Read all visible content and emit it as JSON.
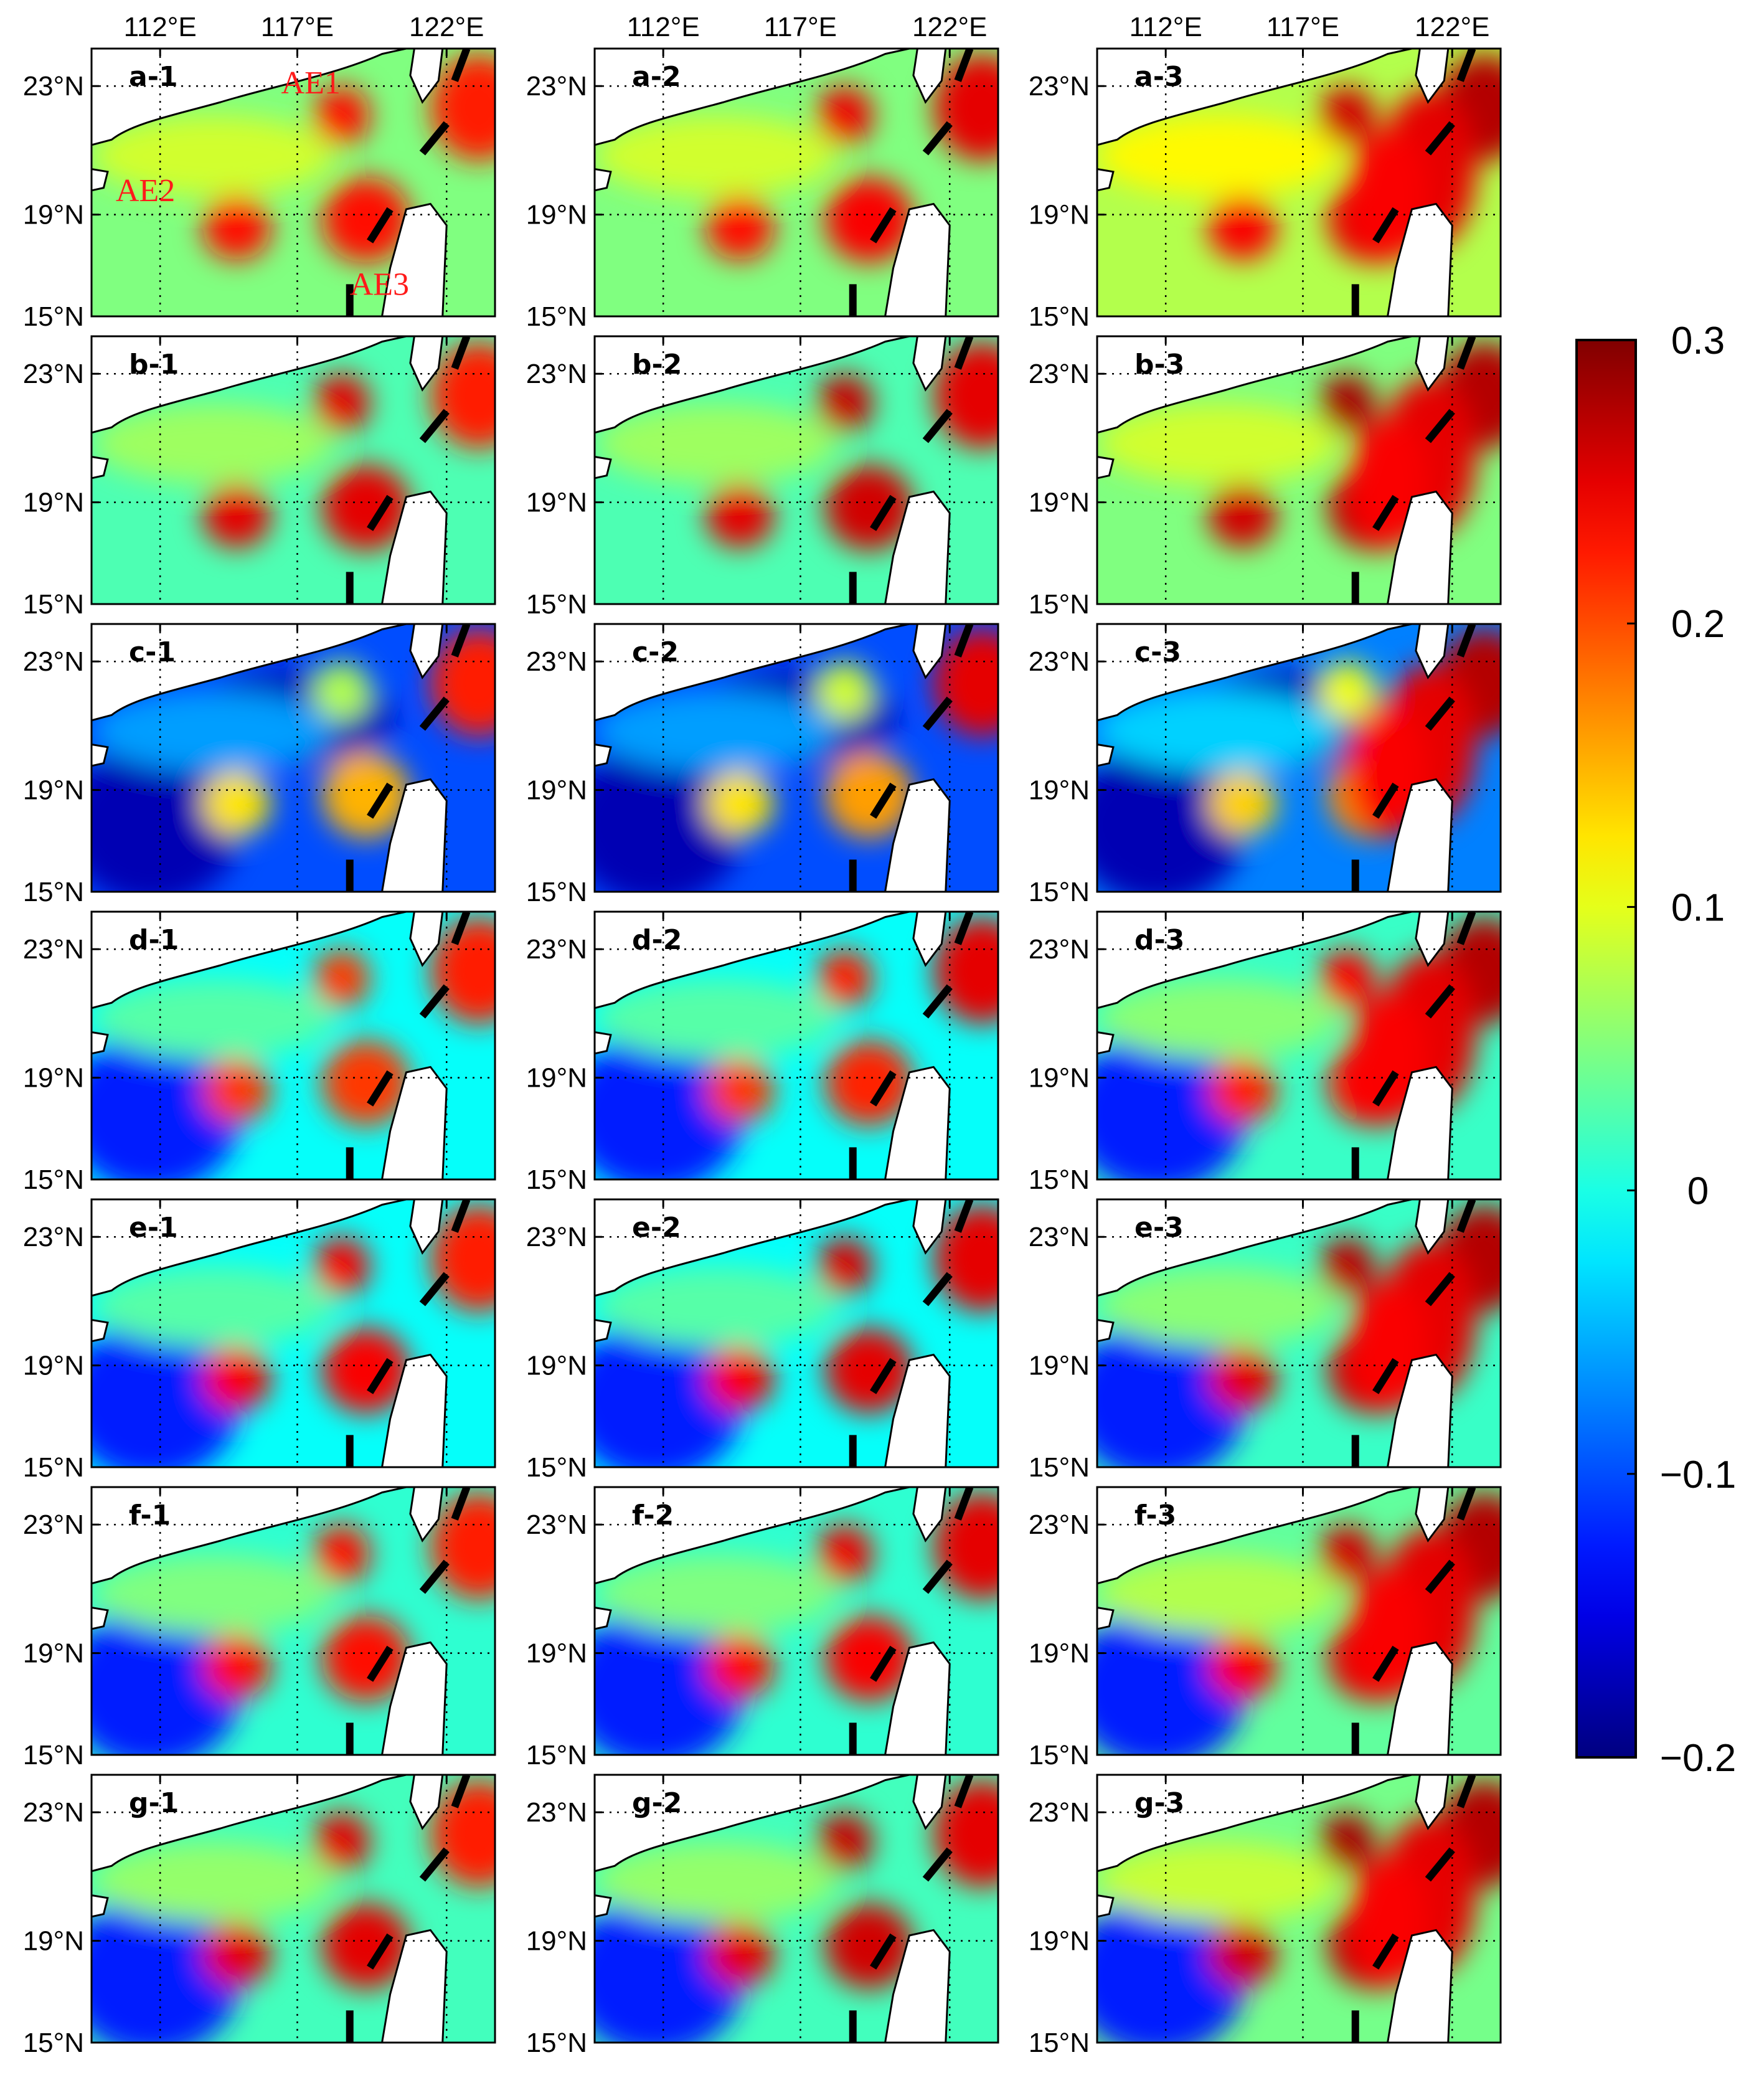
{
  "figure": {
    "panel_rows": [
      "a",
      "b",
      "c",
      "d",
      "e",
      "f",
      "g"
    ],
    "panel_cols": [
      "1",
      "2",
      "3"
    ],
    "panel_labels": [
      [
        "a-1",
        "a-2",
        "a-3"
      ],
      [
        "b-1",
        "b-2",
        "b-3"
      ],
      [
        "c-1",
        "c-2",
        "c-3"
      ],
      [
        "d-1",
        "d-2",
        "d-3"
      ],
      [
        "e-1",
        "e-2",
        "e-3"
      ],
      [
        "f-1",
        "f-2",
        "f-3"
      ],
      [
        "g-1",
        "g-2",
        "g-3"
      ]
    ],
    "lon_ticks": [
      "112°E",
      "117°E",
      "122°E"
    ],
    "lat_ticks": [
      "23°N",
      "19°N",
      "15°N"
    ],
    "eddy_labels": [
      "AE1",
      "AE2",
      "AE3"
    ],
    "colorbar": {
      "ticks": [
        "0.3",
        "0.2",
        "0.1",
        "0",
        "−0.1",
        "−0.2"
      ],
      "values": [
        0.3,
        0.2,
        0.1,
        0,
        -0.1,
        -0.2
      ],
      "range": [
        -0.2,
        0.3
      ],
      "colormap": "jet"
    },
    "colors": {
      "land": "#ffffff",
      "coast": "#000000",
      "eddy_text": "#ff1a1a",
      "dashed_line": "#000000"
    }
  }
}
